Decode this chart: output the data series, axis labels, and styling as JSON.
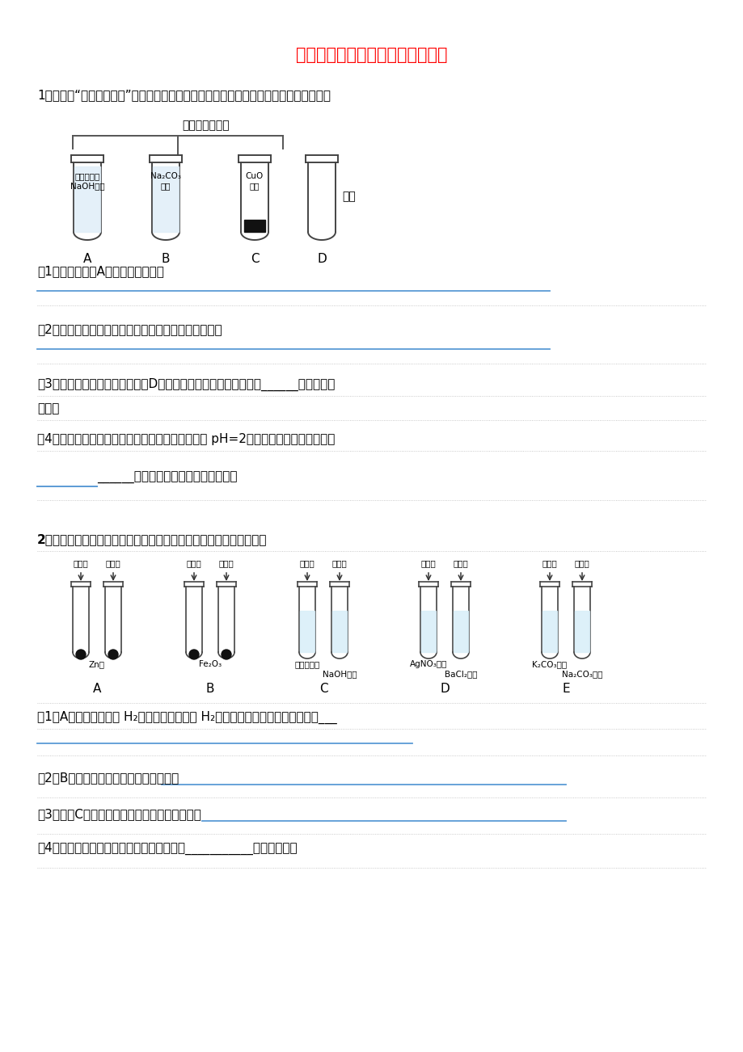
{
  "title": "常见的酸和碱课后习题（复习课）",
  "title_color": "#FF0000",
  "background_color": "#FFFFFF",
  "text_color": "#000000",
  "line_color": "#5B9BD5",
  "q1_intro": "1．为验证“酸的化学通性”，某班同学在实验室进行如下实验．请分析并回答相关问题：",
  "q1_brace_label": "分别滴加稀盐酸",
  "q1_sub1": "（1）写出能证明A中反应发生的现象",
  "q1_sub2": "（2）写出上述实验中酸与金属氧化物反应的化学方程式",
  "q1_sub3_a": "（3）要全面验证酸的化学通性，D试管中能与酸反应的固体单质是______（写一种即",
  "q1_sub3_b": "可）．",
  "q1_sub4_a": "（4）实验完成后，将全部废液倒入废液缸内，测得 pH=2，则废液中所含溶质最多有",
  "q1_sub4_b": "______种（溶质不计指示剂与气体）．",
  "q2_intro": "2．某班同学为验证酸的化学通性，做了五组实验．分析并回答问题．",
  "q2_sub1": "（1）A组试管中都产生 H₂．若要制得较纯的 H₂，选稀硫酸而不选盐酸的原因是___",
  "q2_sub2": "（2）B组试管中实验现象相同，该现象是",
  "q2_sub3": "（3）写出C组任一试管中发生反应的化学方程式",
  "q2_sub4": "（4）上述五组实验中没有体现酸的通性的是___________（填序号）．",
  "tube1_label_A": "A",
  "tube1_label_B": "B",
  "tube1_label_C": "C",
  "tube1_label_D": "D",
  "tube1_contentA1": "滴加酚酞的",
  "tube1_contentA2": "NaOH溶液",
  "tube1_contentB1": "Na₂CO₃",
  "tube1_contentB2": "溶液",
  "tube1_contentC1": "CuO",
  "tube1_contentC2": "粉末",
  "tube1_contentD": "固体",
  "q2_acid1": "稀盐酸",
  "q2_acid2": "稀硫酸",
  "q2_groupA_content": "Zn粒",
  "q2_groupB_content": "Fe₂O₃",
  "q2_groupC1": "滴有酚酞的",
  "q2_groupC2": "NaOH溶液",
  "q2_groupD1": "AgNO₃溶液",
  "q2_groupD2": "BaCl₂溶液",
  "q2_groupE1": "K₂CO₃溶液",
  "q2_groupE2": "Na₂CO₃溶液",
  "q2_labelA": "A",
  "q2_labelB": "B",
  "q2_labelC": "C",
  "q2_labelD": "D",
  "q2_labelE": "E"
}
